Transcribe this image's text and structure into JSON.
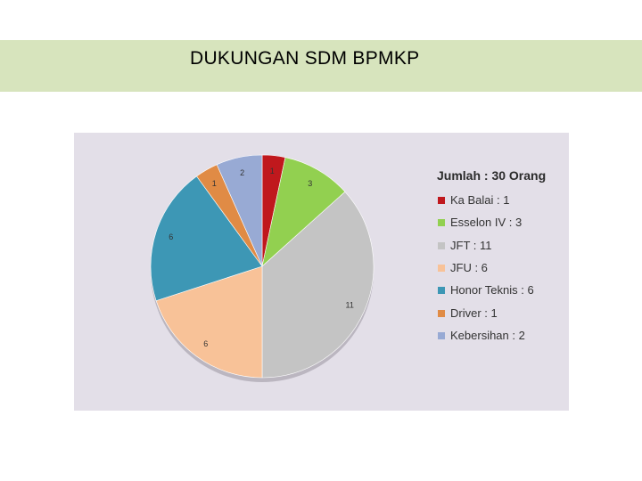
{
  "slide": {
    "title": "DUKUNGAN SDM BPMKP"
  },
  "chart_data": {
    "type": "pie",
    "legend_title": "Jumlah : 30 Orang",
    "legend_position": "right",
    "slices": [
      {
        "label": "Ka Balai : 1",
        "value": 1,
        "color": "#c0181d"
      },
      {
        "label": "Esselon IV : 3",
        "value": 3,
        "color": "#92d050"
      },
      {
        "label": "JFT : 11",
        "value": 11,
        "color": "#c4c4c4"
      },
      {
        "label": "JFU : 6",
        "value": 6,
        "color": "#f8c298"
      },
      {
        "label": "Honor Teknis : 6",
        "value": 6,
        "color": "#3d97b5"
      },
      {
        "label": "Driver : 1",
        "value": 1,
        "color": "#e08b45"
      },
      {
        "label": "Kebersihan : 2",
        "value": 2,
        "color": "#98aad4"
      }
    ]
  }
}
